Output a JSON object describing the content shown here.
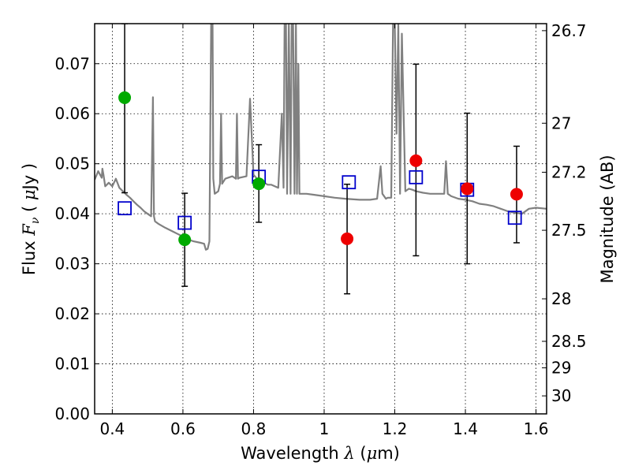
{
  "chart_data": {
    "type": "scatter",
    "title": "",
    "xlabel": {
      "prefix": "Wavelength  ",
      "symbol": "λ",
      "unit_open": " (",
      "unit_symbol": "μ",
      "unit_rest": "m)"
    },
    "ylabel": {
      "prefix": "Flux  ",
      "symbol": "F",
      "subscript": "ν",
      "unit_open": "  ( ",
      "unit_symbol": "μ",
      "unit_rest": "Jy )"
    },
    "y2label": "Magnitude (AB)",
    "xlim": [
      0.35,
      1.63
    ],
    "ylim": [
      0.0,
      0.078
    ],
    "xticks": [
      0.4,
      0.6,
      0.8,
      1.0,
      1.2,
      1.4,
      1.6
    ],
    "xtick_labels": [
      "0.4",
      "0.6",
      "0.8",
      "1",
      "1.2",
      "1.4",
      "1.6"
    ],
    "yticks": [
      0.0,
      0.01,
      0.02,
      0.03,
      0.04,
      0.05,
      0.06,
      0.07
    ],
    "ytick_labels": [
      "0.00",
      "0.01",
      "0.02",
      "0.03",
      "0.04",
      "0.05",
      "0.06",
      "0.07"
    ],
    "y2ticks": [
      {
        "label": "26.7",
        "flux": 0.0766
      },
      {
        "label": "27",
        "flux": 0.0581
      },
      {
        "label": "27.2",
        "flux": 0.0483
      },
      {
        "label": "27.5",
        "flux": 0.0367
      },
      {
        "label": "28",
        "flux": 0.023
      },
      {
        "label": "28.5",
        "flux": 0.0145
      },
      {
        "label": "29",
        "flux": 0.0092
      },
      {
        "label": "30",
        "flux": 0.0036
      }
    ],
    "grid": true,
    "model_spectrum": {
      "color": "#808080",
      "x": [
        0.35,
        0.36,
        0.37,
        0.372,
        0.375,
        0.38,
        0.39,
        0.4,
        0.41,
        0.42,
        0.43,
        0.44,
        0.45,
        0.46,
        0.47,
        0.48,
        0.49,
        0.5,
        0.51,
        0.515,
        0.518,
        0.521,
        0.53,
        0.55,
        0.57,
        0.59,
        0.61,
        0.63,
        0.65,
        0.66,
        0.665,
        0.67,
        0.675,
        0.68,
        0.684,
        0.686,
        0.69,
        0.7,
        0.705,
        0.708,
        0.711,
        0.72,
        0.74,
        0.75,
        0.753,
        0.756,
        0.76,
        0.78,
        0.79,
        0.8,
        0.81,
        0.82,
        0.83,
        0.84,
        0.85,
        0.86,
        0.87,
        0.88,
        0.885,
        0.888,
        0.892,
        0.895,
        0.9,
        0.905,
        0.908,
        0.912,
        0.916,
        0.92,
        0.923,
        0.927,
        0.93,
        0.95,
        0.97,
        1.0,
        1.03,
        1.06,
        1.1,
        1.13,
        1.15,
        1.16,
        1.165,
        1.175,
        1.18,
        1.19,
        1.195,
        1.2,
        1.205,
        1.21,
        1.215,
        1.22,
        1.23,
        1.24,
        1.25,
        1.26,
        1.28,
        1.3,
        1.32,
        1.34,
        1.345,
        1.35,
        1.36,
        1.38,
        1.4,
        1.42,
        1.44,
        1.46,
        1.48,
        1.5,
        1.52,
        1.54,
        1.56,
        1.58,
        1.6,
        1.63
      ],
      "y": [
        0.0468,
        0.0485,
        0.0472,
        0.049,
        0.0478,
        0.0455,
        0.0462,
        0.0455,
        0.047,
        0.0452,
        0.0445,
        0.0438,
        0.0432,
        0.0425,
        0.0418,
        0.0412,
        0.0405,
        0.04,
        0.0395,
        0.0633,
        0.0395,
        0.0385,
        0.038,
        0.0372,
        0.0365,
        0.0358,
        0.035,
        0.0345,
        0.0342,
        0.034,
        0.0328,
        0.033,
        0.0345,
        0.078,
        0.078,
        0.047,
        0.044,
        0.0445,
        0.046,
        0.06,
        0.046,
        0.047,
        0.0475,
        0.047,
        0.06,
        0.047,
        0.0472,
        0.0475,
        0.063,
        0.0478,
        0.047,
        0.0465,
        0.0462,
        0.0458,
        0.0458,
        0.0455,
        0.0452,
        0.06,
        0.0452,
        0.078,
        0.078,
        0.044,
        0.078,
        0.044,
        0.078,
        0.078,
        0.044,
        0.078,
        0.044,
        0.07,
        0.044,
        0.044,
        0.0438,
        0.0435,
        0.0432,
        0.043,
        0.0428,
        0.0428,
        0.043,
        0.0495,
        0.044,
        0.043,
        0.0432,
        0.0432,
        0.078,
        0.078,
        0.056,
        0.078,
        0.044,
        0.076,
        0.0445,
        0.045,
        0.0448,
        0.0445,
        0.0442,
        0.044,
        0.044,
        0.044,
        0.0505,
        0.044,
        0.0435,
        0.043,
        0.0428,
        0.0425,
        0.042,
        0.0418,
        0.0415,
        0.041,
        0.0405,
        0.0402,
        0.04,
        0.041,
        0.0412,
        0.041
      ]
    },
    "model_points": {
      "color": "#0000cc",
      "x": [
        0.435,
        0.605,
        0.815,
        1.07,
        1.26,
        1.405,
        1.54
      ],
      "y": [
        0.0411,
        0.0382,
        0.0474,
        0.0463,
        0.0473,
        0.0448,
        0.0392
      ]
    },
    "observed_green": {
      "color": "#00aa00",
      "x": [
        0.435,
        0.605,
        0.815
      ],
      "y": [
        0.0632,
        0.0348,
        0.046
      ],
      "yerr_low": [
        0.0442,
        0.0255,
        0.0383
      ],
      "yerr_high": [
        0.078,
        0.0441,
        0.0538
      ]
    },
    "observed_red": {
      "color": "#ee0000",
      "x": [
        1.065,
        1.26,
        1.405,
        1.545
      ],
      "y": [
        0.035,
        0.0506,
        0.045,
        0.0439
      ],
      "yerr_low": [
        0.024,
        0.0316,
        0.03,
        0.0342
      ],
      "yerr_high": [
        0.0459,
        0.0699,
        0.0601,
        0.0535
      ]
    }
  }
}
